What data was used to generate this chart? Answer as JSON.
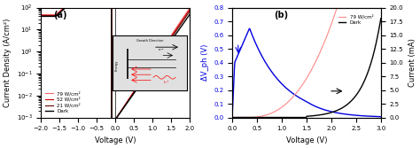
{
  "panel_a": {
    "title": "(a)",
    "xlabel": "Voltage (V)",
    "ylabel": "Current Density (A/cm²)",
    "xlim": [
      -2,
      2
    ],
    "colors": {
      "79": "#ff6666",
      "52": "#cc0000",
      "21": "#660000",
      "dark": "#000000"
    },
    "legend": [
      "79 W/cm²",
      "52 W/cm²",
      "21 W/cm²",
      "Dark"
    ]
  },
  "panel_b": {
    "title": "(b)",
    "xlabel": "Voltage (V)",
    "ylabel_left": "ΔV_ph (V)",
    "ylabel_right": "Current (mA)",
    "xlim": [
      0,
      3
    ],
    "ylim_left": [
      0,
      0.8
    ],
    "ylim_right": [
      0,
      20
    ],
    "colors": {
      "blue": "#0000dd",
      "pink": "#ff8888",
      "dark": "#000000"
    },
    "legend": [
      "79 W/cm²",
      "Dark"
    ]
  }
}
